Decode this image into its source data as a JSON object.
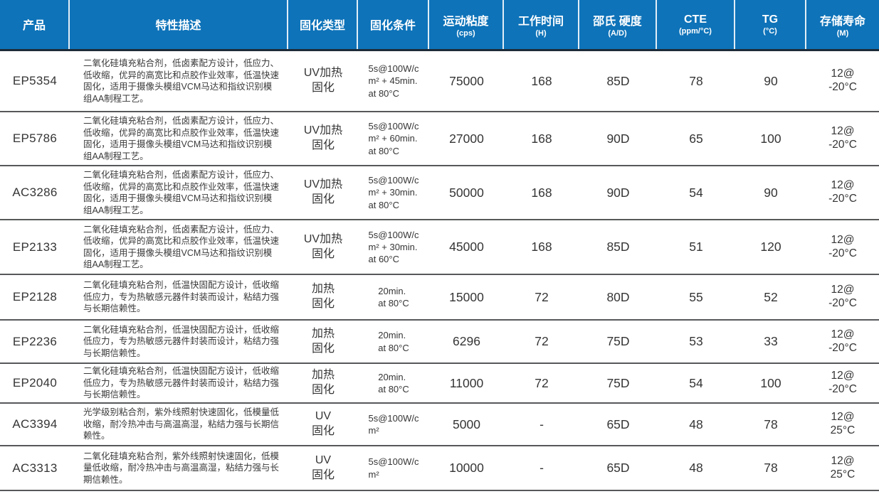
{
  "colors": {
    "header_bg": "#0e73b9",
    "header_text": "#ffffff",
    "header_bottom_border": "#1d2b38",
    "row_divider": "#57585a",
    "body_text": "#353535"
  },
  "table": {
    "columns": [
      {
        "key": "product",
        "label": "产品",
        "sub": ""
      },
      {
        "key": "description",
        "label": "特性描述",
        "sub": ""
      },
      {
        "key": "cure_type",
        "label": "固化类型",
        "sub": ""
      },
      {
        "key": "cure_condition",
        "label": "固化条件",
        "sub": ""
      },
      {
        "key": "viscosity",
        "label": "运动粘度",
        "sub": "(cps)"
      },
      {
        "key": "work_time",
        "label": "工作时间",
        "sub": "(H)"
      },
      {
        "key": "hardness",
        "label": "邵氏 硬度",
        "sub": "(A/D)"
      },
      {
        "key": "cte",
        "label": "CTE",
        "sub": "(ppm/°C)"
      },
      {
        "key": "tg",
        "label": "TG",
        "sub": "(°C)"
      },
      {
        "key": "shelf_life",
        "label": "存储寿命",
        "sub": "(M)"
      }
    ],
    "rows": [
      {
        "product": "EP5354",
        "description": "二氧化硅填充粘合剂，低卤素配方设计，低应力、低收缩，优异的高宽比和点胶作业效率，低温快速固化，适用于摄像头模组VCM马达和指纹识别模组AA制程工艺。",
        "cure_type": "UV加热\n固化",
        "cure_condition": "5s@100W/c\nm² + 45min.\nat 80°C",
        "viscosity": "75000",
        "work_time": "168",
        "hardness": "85D",
        "cte": "78",
        "tg": "90",
        "shelf_life": "12@\n-20°C"
      },
      {
        "product": "EP5786",
        "description": "二氧化硅填充粘合剂，低卤素配方设计，低应力、低收缩，优异的高宽比和点胶作业效率，低温快速固化，适用于摄像头模组VCM马达和指纹识别模组AA制程工艺。",
        "cure_type": "UV加热\n固化",
        "cure_condition": "5s@100W/c\nm² + 60min.\nat 80°C",
        "viscosity": "27000",
        "work_time": "168",
        "hardness": "90D",
        "cte": "65",
        "tg": "100",
        "shelf_life": "12@\n-20°C"
      },
      {
        "product": "AC3286",
        "description": "二氧化硅填充粘合剂，低卤素配方设计，低应力、低收缩，优异的高宽比和点胶作业效率，低温快速固化，适用于摄像头模组VCM马达和指纹识别模组AA制程工艺。",
        "cure_type": "UV加热\n固化",
        "cure_condition": "5s@100W/c\nm² + 30min.\nat 80°C",
        "viscosity": "50000",
        "work_time": "168",
        "hardness": "90D",
        "cte": "54",
        "tg": "90",
        "shelf_life": "12@\n-20°C"
      },
      {
        "product": "EP2133",
        "description": "二氧化硅填充粘合剂，低卤素配方设计，低应力、低收缩，优异的高宽比和点胶作业效率，低温快速固化，适用于摄像头模组VCM马达和指纹识别模组AA制程工艺。",
        "cure_type": "UV加热\n固化",
        "cure_condition": "5s@100W/c\nm² + 30min.\nat 60°C",
        "viscosity": "45000",
        "work_time": "168",
        "hardness": "85D",
        "cte": "51",
        "tg": "120",
        "shelf_life": "12@\n-20°C"
      },
      {
        "product": "EP2128",
        "description": "二氧化硅填充粘合剂，低温快固配方设计，低收缩低应力，专为热敏感元器件封装而设计，粘结力强与长期信赖性。",
        "cure_type": "加热\n固化",
        "cure_condition": "20min.\nat 80°C",
        "viscosity": "15000",
        "work_time": "72",
        "hardness": "80D",
        "cte": "55",
        "tg": "52",
        "shelf_life": "12@\n-20°C"
      },
      {
        "product": "EP2236",
        "description": "二氧化硅填充粘合剂，低温快固配方设计，低收缩低应力，专为热敏感元器件封装而设计，粘结力强与长期信赖性。",
        "cure_type": "加热\n固化",
        "cure_condition": "20min.\nat 80°C",
        "viscosity": "6296",
        "work_time": "72",
        "hardness": "75D",
        "cte": "53",
        "tg": "33",
        "shelf_life": "12@\n-20°C"
      },
      {
        "product": "EP2040",
        "description": "二氧化硅填充粘合剂，低温快固配方设计，低收缩低应力，专为热敏感元器件封装而设计，粘结力强与长期信赖性。",
        "cure_type": "加热\n固化",
        "cure_condition": "20min.\nat 80°C",
        "viscosity": "11000",
        "work_time": "72",
        "hardness": "75D",
        "cte": "54",
        "tg": "100",
        "shelf_life": "12@\n-20°C"
      },
      {
        "product": "AC3394",
        "description": "光学级别粘合剂，紫外线照射快速固化，低模量低收缩，耐冷热冲击与高温高湿，粘结力强与长期信赖性。",
        "cure_type": "UV\n固化",
        "cure_condition": "5s@100W/c\nm²",
        "viscosity": "5000",
        "work_time": "-",
        "hardness": "65D",
        "cte": "48",
        "tg": "78",
        "shelf_life": "12@\n25°C"
      },
      {
        "product": "AC3313",
        "description": "二氧化硅填充粘合剂，紫外线照射快速固化，低模量低收缩，耐冷热冲击与高温高湿，粘结力强与长期信赖性。",
        "cure_type": "UV\n固化",
        "cure_condition": "5s@100W/c\nm²",
        "viscosity": "10000",
        "work_time": "-",
        "hardness": "65D",
        "cte": "48",
        "tg": "78",
        "shelf_life": "12@\n25°C"
      }
    ]
  }
}
